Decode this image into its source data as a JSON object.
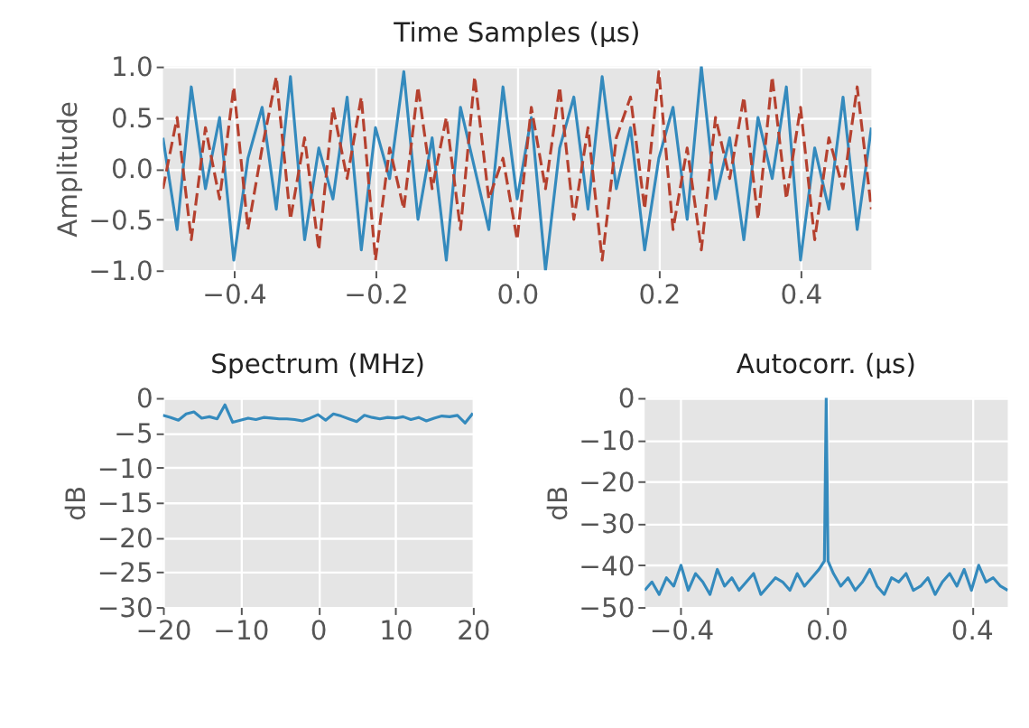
{
  "chart_data": [
    {
      "type": "line",
      "title": "Time Samples (μs)",
      "ylabel": "Amplitude",
      "xlim": [
        -0.5,
        0.5
      ],
      "ylim": [
        -1.0,
        1.0
      ],
      "xticks": [
        -0.4,
        -0.2,
        {
          "value": 0,
          "label": "0.0"
        },
        0.2,
        0.4
      ],
      "yticks": [
        {
          "value": -1,
          "label": "−1.0"
        },
        -0.5,
        {
          "value": 0,
          "label": "0.0"
        },
        0.5,
        {
          "value": 1,
          "label": "1.0"
        }
      ],
      "grid": true,
      "x": [
        -0.5,
        -0.48,
        -0.46,
        -0.44,
        -0.42,
        -0.4,
        -0.38,
        -0.36,
        -0.34,
        -0.32,
        -0.3,
        -0.28,
        -0.26,
        -0.24,
        -0.22,
        -0.2,
        -0.18,
        -0.16,
        -0.14,
        -0.12,
        -0.1,
        -0.08,
        -0.06,
        -0.04,
        -0.02,
        0,
        0.02,
        0.04,
        0.06,
        0.08,
        0.1,
        0.12,
        0.14,
        0.16,
        0.18,
        0.2,
        0.22,
        0.24,
        0.26,
        0.28,
        0.3,
        0.32,
        0.34,
        0.36,
        0.38,
        0.4,
        0.42,
        0.44,
        0.46,
        0.48,
        0.5
      ],
      "series": [
        {
          "color": "#348abd",
          "line_style": "solid",
          "values": [
            0.3,
            -0.6,
            0.8,
            -0.2,
            0.5,
            -0.9,
            0.1,
            0.6,
            -0.4,
            0.9,
            -0.7,
            0.2,
            -0.3,
            0.7,
            -0.8,
            0.4,
            -0.1,
            0.95,
            -0.5,
            0.3,
            -0.9,
            0.6,
            0.0,
            -0.6,
            0.8,
            -0.3,
            0.5,
            -1.0,
            0.2,
            0.7,
            -0.4,
            0.9,
            -0.2,
            0.4,
            -0.8,
            0.1,
            0.6,
            -0.5,
            1.0,
            -0.3,
            0.3,
            -0.7,
            0.5,
            -0.1,
            0.8,
            -0.9,
            0.2,
            -0.4,
            0.7,
            -0.6,
            0.4
          ]
        },
        {
          "color": "#b5412f",
          "line_style": "dashed",
          "values": [
            -0.2,
            0.5,
            -0.7,
            0.4,
            -0.3,
            0.8,
            -0.6,
            0.2,
            0.9,
            -0.5,
            0.3,
            -0.8,
            0.6,
            -0.1,
            0.7,
            -0.9,
            0.2,
            -0.4,
            0.8,
            -0.2,
            0.5,
            -0.6,
            0.9,
            -0.3,
            0.1,
            -0.7,
            0.6,
            -0.2,
            0.8,
            -0.5,
            0.4,
            -0.9,
            0.3,
            0.7,
            -0.4,
            0.95,
            -0.6,
            0.2,
            -0.8,
            0.5,
            -0.1,
            0.7,
            -0.5,
            0.9,
            -0.3,
            0.6,
            -0.7,
            0.3,
            -0.2,
            0.8,
            -0.4
          ]
        }
      ]
    },
    {
      "type": "line",
      "title": "Spectrum (MHz)",
      "ylabel": "dB",
      "xlim": [
        -20,
        20
      ],
      "ylim": [
        -30,
        0
      ],
      "xticks": [
        -20,
        -10,
        0,
        10,
        20
      ],
      "yticks": [
        -30,
        -25,
        -20,
        -15,
        -10,
        -5,
        0
      ],
      "grid": true,
      "x": [
        -20,
        -19,
        -18,
        -17,
        -16,
        -15,
        -14,
        -13,
        -12,
        -11,
        -10,
        -9,
        -8,
        -7,
        -6,
        -5,
        -4,
        -3,
        -2,
        -1,
        0,
        1,
        2,
        3,
        4,
        5,
        6,
        7,
        8,
        9,
        10,
        11,
        12,
        13,
        14,
        15,
        16,
        17,
        18,
        19,
        20
      ],
      "series": [
        {
          "color": "#348abd",
          "line_style": "solid",
          "values": [
            -2.5,
            -2.8,
            -3.2,
            -2.3,
            -2.0,
            -2.9,
            -2.7,
            -3.0,
            -1.0,
            -3.5,
            -3.2,
            -2.9,
            -3.1,
            -2.8,
            -2.9,
            -3.0,
            -3.0,
            -3.1,
            -3.3,
            -2.9,
            -2.4,
            -3.2,
            -2.3,
            -2.6,
            -3.0,
            -3.4,
            -2.5,
            -2.8,
            -3.0,
            -2.8,
            -2.9,
            -2.7,
            -3.1,
            -2.8,
            -3.3,
            -2.9,
            -2.6,
            -2.7,
            -2.5,
            -3.6,
            -2.2
          ]
        }
      ]
    },
    {
      "type": "line",
      "title": "Autocorr. (μs)",
      "ylabel": "dB",
      "xlim": [
        -0.5,
        0.5
      ],
      "ylim": [
        -50,
        0
      ],
      "xticks": [
        -0.4,
        {
          "value": 0,
          "label": "0.0"
        },
        0.4
      ],
      "yticks": [
        -50,
        -40,
        -30,
        -20,
        -10,
        0
      ],
      "grid": true,
      "x": [
        -0.5,
        -0.48,
        -0.46,
        -0.44,
        -0.42,
        -0.4,
        -0.38,
        -0.36,
        -0.34,
        -0.32,
        -0.3,
        -0.28,
        -0.26,
        -0.24,
        -0.22,
        -0.2,
        -0.18,
        -0.16,
        -0.14,
        -0.12,
        -0.1,
        -0.08,
        -0.06,
        -0.04,
        -0.02,
        -0.005,
        0,
        0.005,
        0.02,
        0.04,
        0.06,
        0.08,
        0.1,
        0.12,
        0.14,
        0.16,
        0.18,
        0.2,
        0.22,
        0.24,
        0.26,
        0.28,
        0.3,
        0.32,
        0.34,
        0.36,
        0.38,
        0.4,
        0.42,
        0.44,
        0.46,
        0.48,
        0.5
      ],
      "series": [
        {
          "color": "#348abd",
          "line_style": "solid",
          "values": [
            -46,
            -44,
            -47,
            -43,
            -45,
            -40,
            -46,
            -42,
            -44,
            -47,
            -41,
            -45,
            -43,
            -46,
            -44,
            -42,
            -47,
            -45,
            -43,
            -44,
            -46,
            -42,
            -45,
            -43,
            -41,
            -39,
            0,
            -39,
            -42,
            -45,
            -43,
            -46,
            -44,
            -41,
            -45,
            -47,
            -43,
            -44,
            -42,
            -46,
            -45,
            -43,
            -47,
            -44,
            -42,
            -45,
            -41,
            -46,
            -40,
            -44,
            -43,
            -45,
            -46
          ]
        }
      ]
    }
  ]
}
